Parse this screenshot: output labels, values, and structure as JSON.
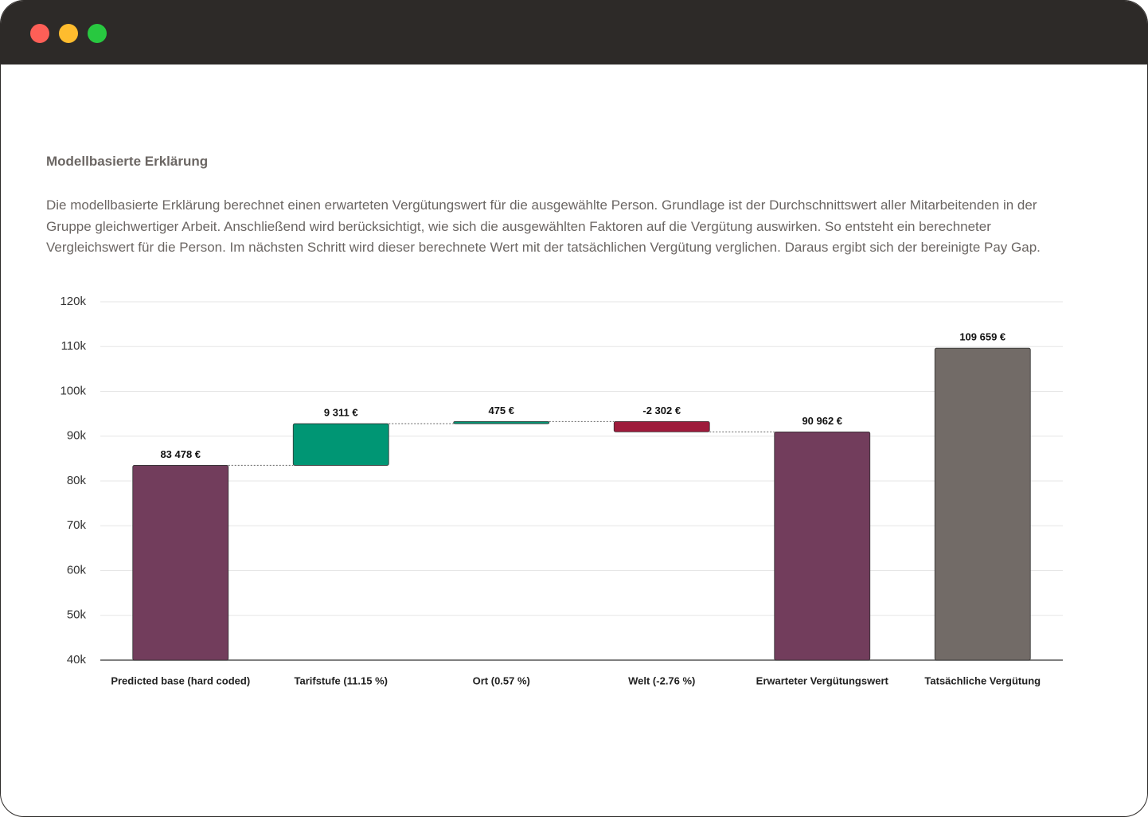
{
  "header": {
    "title": "Modellbasierte Erklärung",
    "description": "Die modellbasierte Erklärung berechnet einen erwarteten Vergütungswert für die ausgewählte Person. Grundlage ist der Durchschnittswert aller Mitarbeitenden in der Gruppe gleichwertiger Arbeit. Anschließend wird berücksichtigt, wie sich die ausgewählten Faktoren auf die Vergütung auswirken. So entsteht ein berechneter Vergleichswert für die Person. Im nächsten Schritt wird dieser berechnete Wert mit der tatsächlichen Vergütung verglichen. Daraus ergibt sich der bereinigte Pay Gap."
  },
  "chart_data": {
    "type": "waterfall",
    "categories": [
      "Predicted base (hard coded)",
      "Tarifstufe (11.15 %)",
      "Ort (0.57 %)",
      "Welt (-2.76 %)",
      "Erwarteter Vergütungswert",
      "Tatsächliche Vergütung"
    ],
    "values": [
      83478,
      9311,
      475,
      -2302,
      90962,
      109659
    ],
    "value_labels": [
      "83 478 €",
      "9 311 €",
      "475 €",
      "-2 302 €",
      "90 962 €",
      "109 659 €"
    ],
    "measure": [
      "absolute",
      "relative",
      "relative",
      "relative",
      "total",
      "absolute"
    ],
    "colors": [
      "#723d5c",
      "#009674",
      "#009674",
      "#9e1b3b",
      "#723d5c",
      "#726b67"
    ],
    "ylim": [
      40000,
      120000
    ],
    "yticks": [
      {
        "value": 40000,
        "label": "40k"
      },
      {
        "value": 50000,
        "label": "50k"
      },
      {
        "value": 60000,
        "label": "60k"
      },
      {
        "value": 70000,
        "label": "70k"
      },
      {
        "value": 80000,
        "label": "80k"
      },
      {
        "value": 90000,
        "label": "90k"
      },
      {
        "value": 100000,
        "label": "100k"
      },
      {
        "value": 110000,
        "label": "110k"
      },
      {
        "value": 120000,
        "label": "120k"
      }
    ],
    "grid": true
  }
}
